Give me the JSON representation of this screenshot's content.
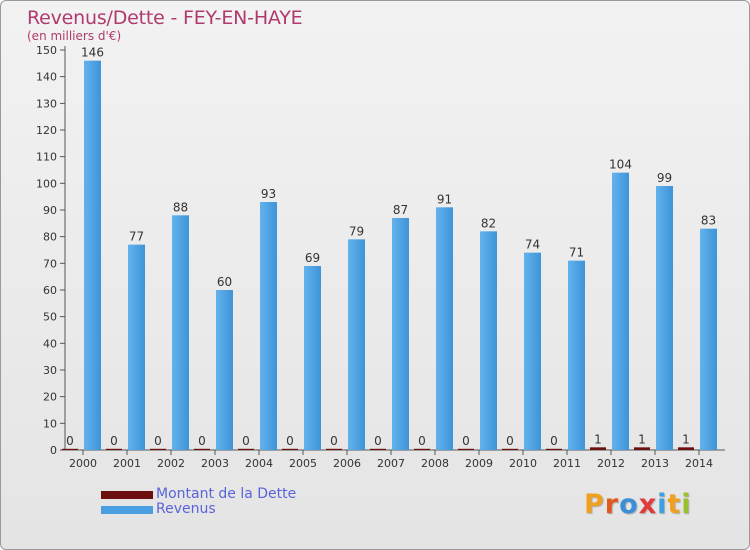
{
  "header": {
    "title": "Revenus/Dette - FEY-EN-HAYE",
    "subtitle": "(en milliers d'€)"
  },
  "chart_data": {
    "type": "bar",
    "title": "Revenus/Dette - FEY-EN-HAYE",
    "subtitle": "(en milliers d'€)",
    "xlabel": "",
    "ylabel": "",
    "ylim": [
      0,
      150
    ],
    "yticks": [
      0,
      10,
      20,
      30,
      40,
      50,
      60,
      70,
      80,
      90,
      100,
      110,
      120,
      130,
      140,
      150
    ],
    "grid": false,
    "categories": [
      "2000",
      "2001",
      "2002",
      "2003",
      "2004",
      "2005",
      "2006",
      "2007",
      "2008",
      "2009",
      "2010",
      "2011",
      "2012",
      "2013",
      "2014"
    ],
    "series": [
      {
        "name": "Montant de la Dette",
        "color": "#6b0f0f",
        "values": [
          0,
          0,
          0,
          0,
          0,
          0,
          0,
          0,
          0,
          0,
          0,
          0,
          1,
          1,
          1
        ]
      },
      {
        "name": "Revenus",
        "color": "#4a9fe0",
        "values": [
          146,
          77,
          88,
          60,
          93,
          69,
          79,
          87,
          91,
          82,
          74,
          71,
          104,
          99,
          83
        ]
      }
    ]
  },
  "legend": {
    "items": [
      {
        "label": "Montant de la Dette",
        "color": "#6b0f0f"
      },
      {
        "label": "Revenus",
        "color": "#4a9fe0"
      }
    ]
  },
  "logo": {
    "text": "Proxiti",
    "letter_colors": [
      "#f0a020",
      "#e05a20",
      "#3a8fd8",
      "#e03a3a",
      "#3aa0e0",
      "#f0a020",
      "#9ac030"
    ]
  }
}
